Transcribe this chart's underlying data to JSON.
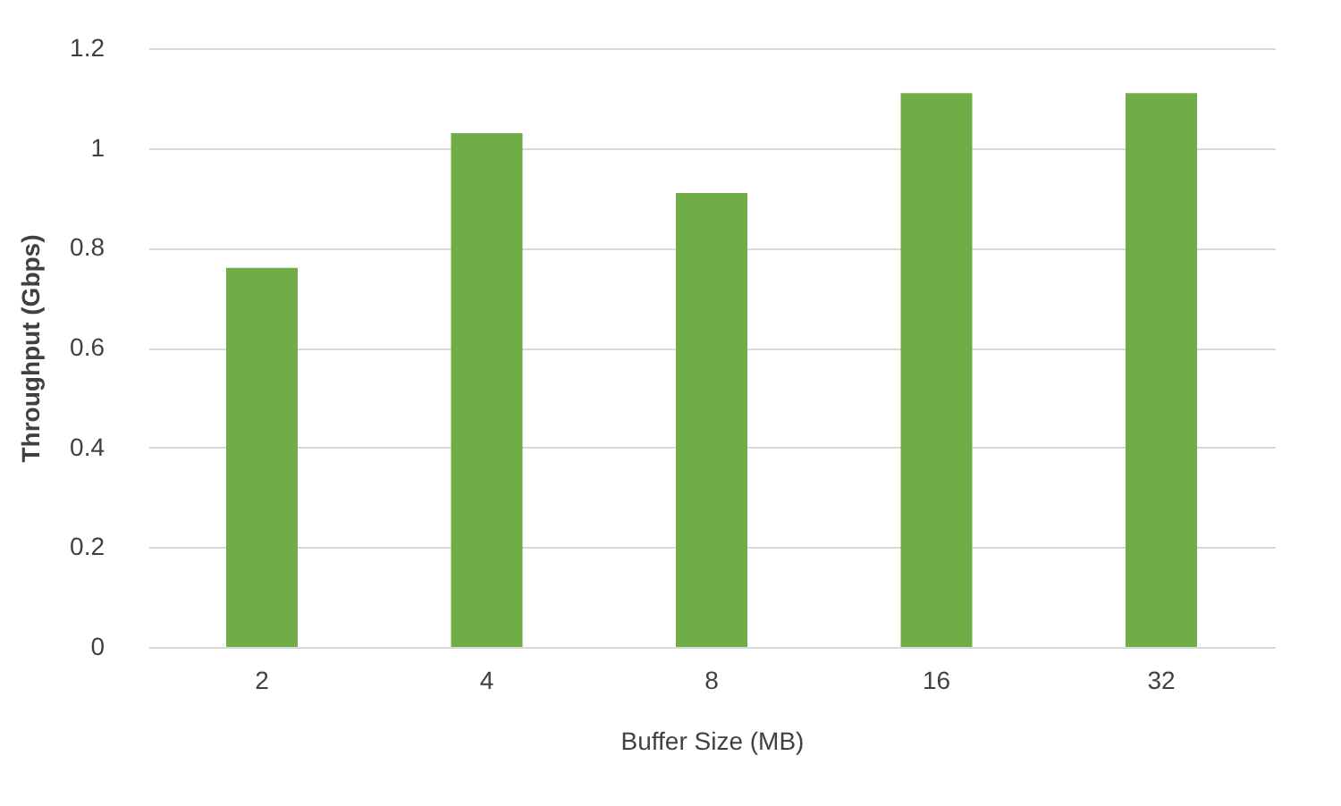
{
  "chart_data": {
    "type": "bar",
    "xlabel": "Buffer Size (MB)",
    "ylabel": "Throughput (Gbps)",
    "categories": [
      "2",
      "4",
      "8",
      "16",
      "32"
    ],
    "values": [
      0.76,
      1.03,
      0.91,
      1.11,
      1.11
    ],
    "color": "#70ad47",
    "ylim": [
      0,
      1.2
    ],
    "yticks": [
      0,
      0.2,
      0.4,
      0.6,
      0.8,
      1,
      1.2
    ],
    "grid": "y"
  }
}
